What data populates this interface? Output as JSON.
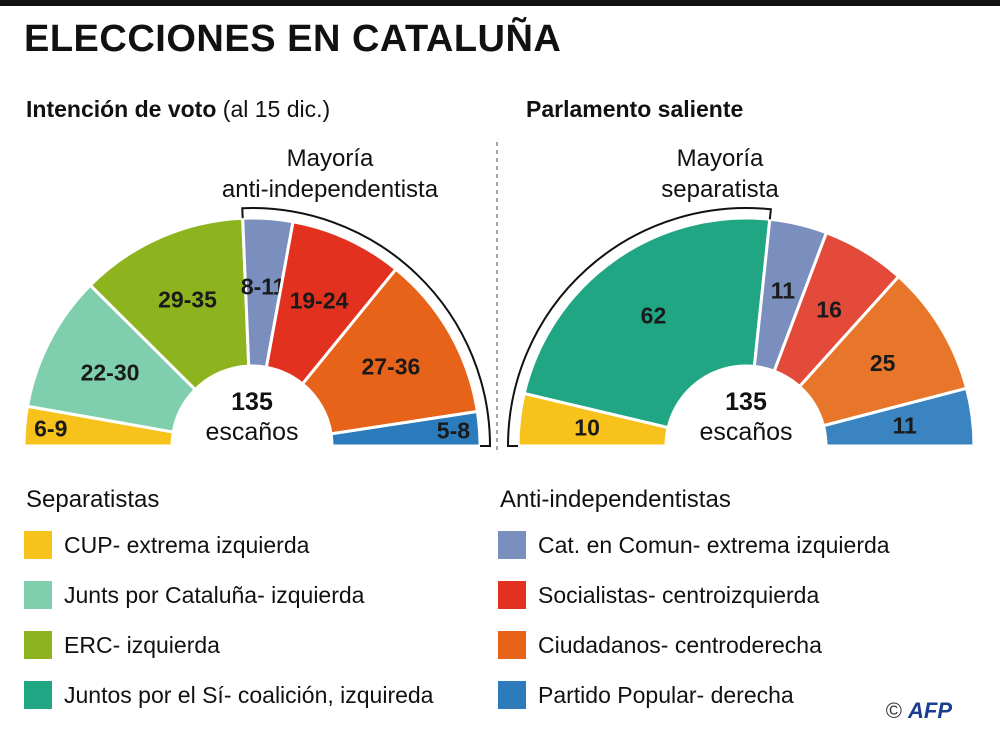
{
  "title": "ELECCIONES EN CATALUÑA",
  "credit": {
    "copyright": "©",
    "agency": "AFP"
  },
  "chart_data": [
    {
      "type": "pie",
      "variant": "parliament-half-donut",
      "title_bold": "Intención de voto",
      "title_rest": " (al 15 dic.)",
      "total_value": "135",
      "total_label": "escaños",
      "bracket_label": [
        "Mayoría",
        "anti-independentista"
      ],
      "slices": [
        {
          "party": "CUP",
          "label": "6-9",
          "value": 7.5,
          "color": "#f7c21b"
        },
        {
          "party": "Junts por Cataluña",
          "label": "22-30",
          "value": 26,
          "color": "#7fcfae"
        },
        {
          "party": "ERC",
          "label": "29-35",
          "value": 32,
          "color": "#8db31f"
        },
        {
          "party": "Cat. en Comun",
          "label": "8-11",
          "value": 9.5,
          "color": "#7b8fbf"
        },
        {
          "party": "Socialistas",
          "label": "19-24",
          "value": 21.5,
          "color": "#e2311e"
        },
        {
          "party": "Ciudadanos",
          "label": "27-36",
          "value": 31.5,
          "color": "#e8631a"
        },
        {
          "party": "Partido Popular",
          "label": "5-8",
          "value": 6.5,
          "color": "#2b7bbd"
        }
      ]
    },
    {
      "type": "pie",
      "variant": "parliament-half-donut",
      "title_bold": "Parlamento saliente",
      "title_rest": "",
      "total_value": "135",
      "total_label": "escaños",
      "bracket_label": [
        "Mayoría",
        "separatista"
      ],
      "slices": [
        {
          "party": "CUP",
          "label": "10",
          "value": 10,
          "color": "#f7c21b"
        },
        {
          "party": "Juntos por el Sí",
          "label": "62",
          "value": 62,
          "color": "#21a683"
        },
        {
          "party": "Cat. en Comun",
          "label": "11",
          "value": 11,
          "color": "#7b8fbf"
        },
        {
          "party": "Socialistas",
          "label": "16",
          "value": 16,
          "color": "#e34a3a"
        },
        {
          "party": "Ciudadanos",
          "label": "25",
          "value": 25,
          "color": "#e8762a"
        },
        {
          "party": "Partido Popular",
          "label": "11",
          "value": 11,
          "color": "#3a84c2"
        }
      ]
    }
  ],
  "legend": {
    "separatistas": {
      "heading": "Separatistas",
      "items": [
        {
          "name": "CUP",
          "desc": " - extrema izquierda",
          "color": "#f7c21b"
        },
        {
          "name": "Junts por Cataluña",
          "desc": " - izquierda",
          "color": "#7fcfae"
        },
        {
          "name": "ERC",
          "desc": " - izquierda",
          "color": "#8db31f"
        },
        {
          "name": "Juntos por el Sí",
          "desc": " - coalición, izquireda",
          "color": "#21a683"
        }
      ]
    },
    "anti": {
      "heading": "Anti-independentistas",
      "items": [
        {
          "name": "Cat. en Comun",
          "desc": " - extrema izquierda",
          "color": "#7b8fbf"
        },
        {
          "name": "Socialistas",
          "desc": " - centroizquierda",
          "color": "#e2311e"
        },
        {
          "name": "Ciudadanos",
          "desc": " - centroderecha",
          "color": "#e8631a"
        },
        {
          "name": "Partido Popular",
          "desc": " - derecha",
          "color": "#2b7bbd"
        }
      ]
    }
  }
}
